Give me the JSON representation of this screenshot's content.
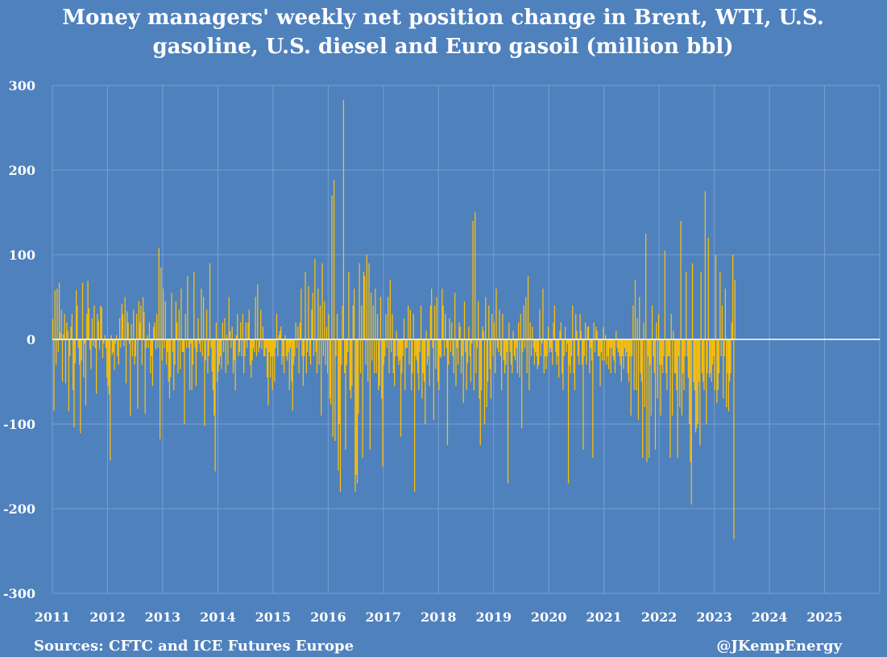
{
  "chart_data": {
    "type": "bar",
    "title_lines": [
      "Money managers' weekly net position change in Brent, WTI, U.S.",
      "gasoline, U.S. diesel and Euro gasoil (million bbl)"
    ],
    "source": "Sources: CFTC and ICE Futures Europe",
    "credit": "@JKempEnergy",
    "ylim": [
      -300,
      300
    ],
    "yticks": [
      300,
      200,
      100,
      0,
      -100,
      -200,
      -300
    ],
    "ytick_labels": [
      "300",
      "200",
      "100",
      "0",
      "-100",
      "-200",
      "-300"
    ],
    "xlim": [
      2011,
      2026
    ],
    "xticks": [
      2011,
      2012,
      2013,
      2014,
      2015,
      2016,
      2017,
      2018,
      2019,
      2020,
      2021,
      2022,
      2023,
      2024,
      2025
    ],
    "xtick_labels": [
      "2011",
      "2012",
      "2013",
      "2014",
      "2015",
      "2016",
      "2017",
      "2018",
      "2019",
      "2020",
      "2021",
      "2022",
      "2023",
      "2024",
      "2025"
    ],
    "grid": true,
    "legend": "none",
    "colors": {
      "background": "#4f81bd",
      "bars": "#ffc000",
      "grid": "#7a9fd0",
      "zero_line": "#ffffff",
      "text": "#ffffff"
    },
    "series": [
      {
        "x_start": 2011.0,
        "step_years": 0.01923,
        "values": [
          24,
          -84,
          58,
          -30,
          60,
          -15,
          67,
          8,
          35,
          -50,
          6,
          30,
          -52,
          20,
          10,
          -85,
          -20,
          15,
          30,
          -60,
          -104,
          -28,
          58,
          40,
          -10,
          -30,
          -111,
          -25,
          67,
          -45,
          -5,
          -78,
          30,
          69,
          37,
          -12,
          -35,
          25,
          -8,
          40,
          -10,
          -64,
          30,
          22,
          -12,
          40,
          38,
          -22,
          -5,
          5,
          -10,
          -45,
          -55,
          -65,
          -143,
          5,
          -18,
          -15,
          -36,
          -5,
          5,
          -20,
          -30,
          25,
          -10,
          42,
          30,
          -8,
          50,
          -52,
          33,
          20,
          -5,
          -90,
          18,
          -20,
          35,
          -30,
          -20,
          30,
          -82,
          45,
          20,
          40,
          -30,
          50,
          32,
          -88,
          -10,
          5,
          -10,
          20,
          -40,
          -20,
          -55,
          15,
          20,
          -12,
          30,
          -10,
          108,
          -118,
          85,
          -25,
          60,
          -10,
          45,
          -30,
          -15,
          -50,
          -70,
          -45,
          55,
          -15,
          -60,
          -30,
          45,
          20,
          -40,
          35,
          -35,
          60,
          -15,
          -15,
          -100,
          30,
          -10,
          75,
          -10,
          -60,
          -5,
          -60,
          -30,
          80,
          -10,
          -55,
          -15,
          25,
          -5,
          -15,
          60,
          -20,
          50,
          -102,
          -25,
          35,
          -40,
          -20,
          90,
          -10,
          -38,
          -60,
          -90,
          -156,
          20,
          -50,
          -38,
          -30,
          -20,
          -35,
          20,
          -15,
          25,
          -40,
          5,
          -30,
          50,
          10,
          -10,
          15,
          -40,
          -25,
          -60,
          5,
          30,
          -20,
          -15,
          20,
          -20,
          30,
          -40,
          -20,
          20,
          -10,
          20,
          35,
          -30,
          -45,
          -25,
          -10,
          -15,
          50,
          -20,
          65,
          -15,
          -10,
          35,
          -12,
          15,
          -20,
          -20,
          -10,
          -45,
          -78,
          -15,
          -45,
          -20,
          -60,
          -20,
          -50,
          -10,
          30,
          -20,
          5,
          10,
          15,
          -30,
          -20,
          -40,
          5,
          -20,
          -25,
          -15,
          -60,
          -10,
          -50,
          -84,
          -30,
          -20,
          20,
          -10,
          15,
          -40,
          20,
          60,
          -20,
          -55,
          -20,
          80,
          -40,
          -15,
          63,
          -20,
          -30,
          35,
          55,
          -20,
          95,
          -15,
          -40,
          60,
          -30,
          40,
          -90,
          90,
          -20,
          45,
          -30,
          15,
          -40,
          30,
          -70,
          -77,
          170,
          -115,
          188,
          -120,
          -20,
          30,
          -155,
          -100,
          -180,
          -30,
          40,
          283,
          -40,
          -130,
          -30,
          -15,
          80,
          -60,
          -70,
          -55,
          40,
          60,
          -180,
          -160,
          -170,
          -88,
          90,
          -40,
          40,
          -140,
          80,
          75,
          -30,
          100,
          -50,
          90,
          -130,
          55,
          -25,
          40,
          -40,
          60,
          -40,
          30,
          -60,
          -55,
          50,
          -70,
          -150,
          -30,
          -20,
          30,
          -10,
          50,
          -40,
          70,
          -15,
          30,
          -40,
          -55,
          -20,
          10,
          -20,
          -30,
          -25,
          -115,
          -40,
          -20,
          25,
          -60,
          -10,
          -10,
          40,
          -30,
          35,
          -60,
          -40,
          30,
          -180,
          -20,
          -25,
          -40,
          -60,
          -15,
          40,
          -70,
          -40,
          -50,
          -100,
          10,
          -30,
          -20,
          -55,
          40,
          60,
          -10,
          -95,
          40,
          -35,
          50,
          -50,
          -60,
          -20,
          -22,
          60,
          40,
          -20,
          30,
          -10,
          -125,
          -30,
          25,
          -15,
          20,
          -20,
          -40,
          55,
          -55,
          -10,
          -30,
          20,
          15,
          -40,
          -20,
          -75,
          45,
          -15,
          -60,
          -28,
          15,
          -20,
          -50,
          -5,
          140,
          -60,
          150,
          -40,
          -10,
          45,
          -70,
          -125,
          -60,
          15,
          10,
          -100,
          50,
          -80,
          -50,
          40,
          -35,
          -70,
          30,
          -20,
          20,
          -40,
          60,
          -10,
          -15,
          35,
          -20,
          -60,
          30,
          -25,
          -40,
          -30,
          -15,
          -170,
          20,
          -15,
          -30,
          -40,
          10,
          -20,
          -25,
          -10,
          -40,
          20,
          -45,
          30,
          -105,
          -15,
          40,
          -10,
          50,
          -40,
          75,
          -60,
          20,
          -20,
          15,
          -10,
          -30,
          -15,
          -20,
          -35,
          -30,
          35,
          -20,
          -5,
          60,
          -40,
          -20,
          -35,
          -20,
          15,
          -15,
          -10,
          -15,
          -30,
          20,
          40,
          -15,
          -30,
          -20,
          -45,
          10,
          20,
          -40,
          -60,
          -20,
          15,
          -15,
          -5,
          -170,
          -30,
          -40,
          -20,
          40,
          -40,
          -60,
          30,
          10,
          -20,
          -30,
          30,
          10,
          -30,
          -130,
          -20,
          20,
          -30,
          15,
          15,
          -40,
          -10,
          -25,
          -140,
          20,
          -15,
          15,
          10,
          -20,
          -20,
          -55,
          -15,
          -25,
          15,
          -25,
          5,
          -30,
          -20,
          -35,
          -10,
          -40,
          -10,
          -20,
          -25,
          -40,
          10,
          -10,
          -15,
          -20,
          -30,
          -50,
          -20,
          -35,
          -10,
          -20,
          -15,
          -40,
          -50,
          -20,
          -90,
          -20,
          40,
          -60,
          70,
          -60,
          25,
          -95,
          50,
          -40,
          -50,
          -140,
          20,
          -80,
          125,
          -145,
          -20,
          -140,
          -30,
          -90,
          40,
          -20,
          -40,
          -130,
          20,
          -70,
          30,
          -30,
          -90,
          -30,
          -40,
          -20,
          105,
          -40,
          -60,
          -20,
          -20,
          -140,
          30,
          -90,
          10,
          -40,
          -40,
          -60,
          -140,
          -20,
          -80,
          140,
          -90,
          -40,
          -60,
          -20,
          80,
          -20,
          -45,
          -100,
          -145,
          -195,
          90,
          -50,
          -60,
          -110,
          -105,
          -100,
          -50,
          -125,
          80,
          -40,
          -50,
          -60,
          175,
          -100,
          -40,
          120,
          -45,
          -40,
          -50,
          -30,
          -20,
          -60,
          100,
          -75,
          -60,
          -40,
          80,
          -20,
          40,
          -70,
          -20,
          60,
          -80,
          -40,
          -85,
          -50,
          -40,
          20,
          100,
          -236,
          70
        ]
      }
    ]
  }
}
